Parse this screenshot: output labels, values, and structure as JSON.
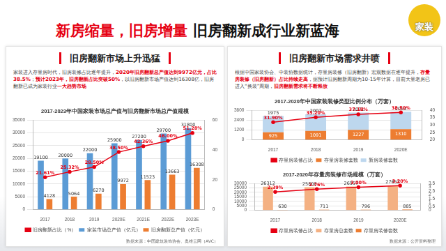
{
  "header": {
    "title_red": "新房缩量，旧房增量",
    "title_black": "旧房翻新成行业新蓝海",
    "logo": "家装"
  },
  "panels": [
    {
      "heading": "旧房翻新市场上升迅猛",
      "text": [
        {
          "t": "家装进入存量房时代，旧房装修占比逐年提升，",
          "red": false
        },
        {
          "t": "2020年旧房翻新总产值达到9972亿元，占比38.5%",
          "red": true
        },
        {
          "t": "；",
          "red": false
        },
        {
          "t": "预计2023年，旧房翻新占比突破50%",
          "red": true
        },
        {
          "t": "，以旧房翻新市场产值达到16308亿，旧房翻新已成为家装行业",
          "red": false
        },
        {
          "t": "一大趋势市场",
          "red": true
        }
      ],
      "source": "数据来源：中国建筑装饰协会、奥维云网（AVC）"
    },
    {
      "heading": "旧房翻新市场需求井喷",
      "text": [
        {
          "t": "根据中国家装协会、中装协数据统计，存量房装修（旧房翻新）宏观数据在逐年提升，",
          "red": false
        },
        {
          "t": "存量房装修（旧房翻新）占比持续走高",
          "red": true
        },
        {
          "t": "，据预计旧房翻新周期为10-15年计算，目前大量老房已进入“换装”周期，",
          "red": false
        },
        {
          "t": "旧房翻新需求将不断释放",
          "red": true
        }
      ],
      "source": "数据来源：公开资料整理"
    }
  ],
  "chart_data": [
    {
      "type": "bar",
      "title": "2017-2023年中国家装市场总产值与旧房翻新市场总产值规模",
      "categories": [
        "2017",
        "2018",
        "2019",
        "2020E",
        "2021E",
        "2022E",
        "2023E"
      ],
      "series": [
        {
          "name": "家装市场总产值（亿元）",
          "color": "#5b9bd5",
          "values": [
            19100,
            20000,
            22000,
            25900,
            27200,
            29700,
            31800
          ]
        },
        {
          "name": "旧房翻新总产值（亿元）",
          "color": "#ed7d31",
          "values": [
            4128,
            5064,
            6270,
            9972,
            11523,
            13663,
            16308
          ]
        },
        {
          "name": "旧房翻新占比（%）",
          "type": "line",
          "axis": "y2",
          "color": "#e60012",
          "marker": "circle",
          "line_style": "solid",
          "values": [
            21.61,
            25.32,
            28.5,
            38.5,
            42.36,
            46.0,
            51.28
          ],
          "value_labels": [
            "21.61%",
            "25.32%",
            "28.50%",
            "38.50%",
            "42.36%",
            "46.00%",
            "51.28%"
          ]
        }
      ],
      "ylim": [
        0,
        35000
      ],
      "yticks": [
        0,
        5000,
        10000,
        15000,
        20000,
        25000,
        30000,
        35000
      ],
      "y2lim": [
        0,
        60
      ],
      "y2ticks": [
        0,
        20,
        40,
        60
      ],
      "grid": true,
      "legend": "bottom",
      "data_labels": true,
      "stacked": false
    },
    {
      "type": "bar",
      "title": "2017-2020年中国家装装修类型比例分布（万套）",
      "categories": [
        "2017",
        "2018",
        "2019",
        "2020E"
      ],
      "series": [
        {
          "name": "存量房装修套数",
          "color": "#ed7d31",
          "values": [
            925,
            1091,
            1227,
            1310
          ]
        },
        {
          "name": "新房装修套数",
          "color": "#bdd7ee",
          "values": [
            1975,
            2007,
            2071,
            2093
          ]
        },
        {
          "name": "存量房装修占比",
          "type": "line",
          "axis": "y2",
          "color": "#e60012",
          "marker": "circle",
          "line_style": "solid",
          "values": [
            31.9,
            35.2,
            37.18,
            38.5
          ],
          "value_labels": [
            "31.90%",
            "35.20%",
            "37.18%",
            "38.50%"
          ]
        }
      ],
      "ylim": [
        0,
        3600
      ],
      "yticks": [
        0,
        1200,
        2400,
        3600
      ],
      "y2lim": [
        20,
        40
      ],
      "y2ticks": [
        20,
        25,
        30,
        35,
        40
      ],
      "grid": true,
      "legend": "bottom",
      "data_labels": true,
      "stacked": true
    },
    {
      "type": "bar",
      "title": "2017-2020年存量房装修市场规模（万套）",
      "categories": [
        "2017",
        "2018",
        "2019",
        "2020E"
      ],
      "series": [
        {
          "name": "存量房总套数",
          "color": "#f4b183",
          "values": [
            26312,
            25808,
            26557,
            27652
          ]
        },
        {
          "name": "存量房装修套数",
          "color": "#ed7d31",
          "values": [
            630,
            711,
            796,
            885
          ]
        },
        {
          "name": "存量房装修占比",
          "type": "line",
          "axis": "y2",
          "color": "#e60012",
          "marker": "circle",
          "line_style": "solid",
          "values": [
            2.39,
            2.76,
            3.0,
            3.2
          ],
          "value_labels": [
            "2.39%",
            "2.76%",
            "3.00%",
            "3.20%"
          ]
        }
      ],
      "ylim": [
        0,
        30000
      ],
      "yticks": [
        0,
        5000,
        10000,
        15000,
        20000,
        25000,
        30000
      ],
      "y2lim": [
        0,
        3.5
      ],
      "y2ticks": [
        0,
        0.5,
        1,
        1.5,
        2,
        2.5,
        3,
        3.5
      ],
      "grid": true,
      "legend": "bottom",
      "data_labels": true,
      "stacked": false
    }
  ]
}
